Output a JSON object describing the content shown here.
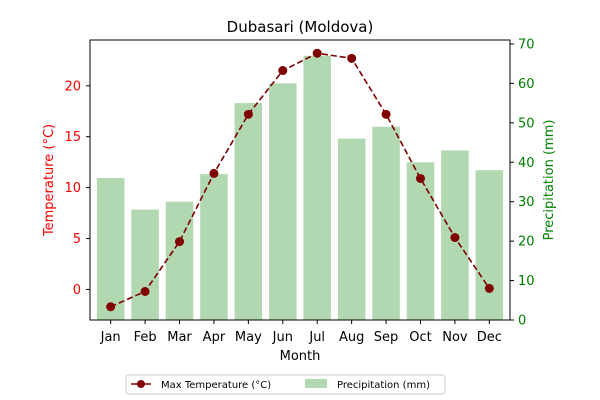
{
  "chart_data": {
    "type": "bar",
    "title": "Dubasari (Moldova)",
    "xlabel": "Month",
    "categories": [
      "Jan",
      "Feb",
      "Mar",
      "Apr",
      "May",
      "Jun",
      "Jul",
      "Aug",
      "Sep",
      "Oct",
      "Nov",
      "Dec"
    ],
    "left_axis": {
      "label": "Temperature (°C)",
      "color": "#ff0000",
      "ylim": [
        -3,
        24.5
      ],
      "ticks": [
        0,
        5,
        10,
        15,
        20
      ]
    },
    "right_axis": {
      "label": "Precipitation (mm)",
      "color": "#008000",
      "ylim": [
        0,
        71
      ],
      "ticks": [
        0,
        10,
        20,
        30,
        40,
        50,
        60,
        70
      ]
    },
    "series": [
      {
        "name": "Max Temperature (°C)",
        "type": "line",
        "axis": "left",
        "color": "#800000",
        "style": "dashed-with-circle-markers",
        "values": [
          -1.7,
          -0.2,
          4.7,
          11.4,
          17.2,
          21.5,
          23.2,
          22.7,
          17.2,
          10.9,
          5.1,
          0.1
        ]
      },
      {
        "name": "Precipitation (mm)",
        "type": "bar",
        "axis": "right",
        "color": "#b2d8b2",
        "values": [
          36,
          28,
          30,
          37,
          55,
          60,
          67,
          46,
          49,
          40,
          43,
          38
        ]
      }
    ],
    "legend": "bottom-center",
    "grid": false
  }
}
